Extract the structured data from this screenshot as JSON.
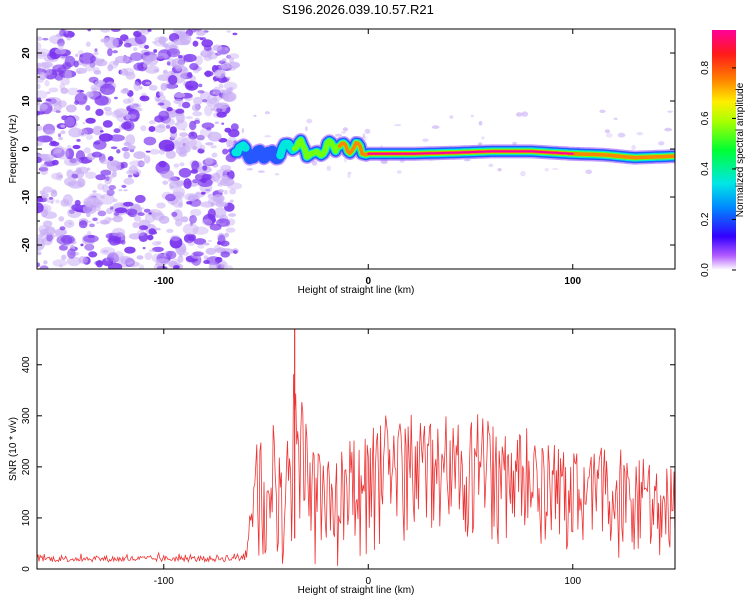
{
  "title": "S196.2026.039.10.57.R21",
  "colors": {
    "signal": "#ee3333",
    "noise": "#7a33ee",
    "noise_light": "#c9aef5"
  },
  "chart_data": [
    {
      "type": "heatmap",
      "name": "spectrogram",
      "title": "S196.2026.039.10.57.R21",
      "xlabel": "Height of straight line (km)",
      "ylabel": "Frequency (Hz)",
      "xlim": [
        -162,
        150
      ],
      "ylim": [
        -25,
        25
      ],
      "xticks": [
        -100,
        0,
        100
      ],
      "xtick_labels": [
        "-100",
        "0",
        "100"
      ],
      "yticks": [
        -20,
        -10,
        0,
        10,
        20
      ],
      "ytick_labels": [
        "-20",
        "-10",
        "0",
        "10",
        "20"
      ],
      "noise_region_x": [
        -162,
        -65
      ],
      "signal_track": {
        "x": [
          -65,
          -60,
          -55,
          -50,
          -46,
          -42,
          -38,
          -34,
          -30,
          -26,
          -22,
          -18,
          -14,
          -10,
          -6,
          0,
          20,
          40,
          60,
          80,
          100,
          115,
          130,
          150
        ],
        "freq": [
          0.5,
          -0.5,
          -1.5,
          -0.5,
          -2.0,
          0.0,
          0.5,
          1.0,
          -0.5,
          -1.5,
          0.0,
          0.5,
          1.0,
          0.0,
          0.3,
          -1.0,
          -1.0,
          -0.8,
          -0.5,
          -0.5,
          -1.0,
          -1.2,
          -1.8,
          -1.5
        ],
        "amplitude": [
          0.4,
          0.35,
          0.3,
          0.3,
          0.25,
          0.4,
          0.5,
          0.6,
          0.55,
          0.6,
          0.65,
          0.7,
          0.75,
          0.8,
          0.85,
          0.95,
          0.95,
          0.95,
          0.95,
          0.95,
          0.95,
          0.9,
          0.85,
          0.8
        ]
      },
      "colorbar": {
        "label": "Normalized spectral amplitude",
        "ticks": [
          0.0,
          0.2,
          0.4,
          0.6,
          0.8
        ],
        "tick_labels": [
          "0.0",
          "0.2",
          "0.4",
          "0.6",
          "0.8"
        ],
        "range": [
          0,
          0.95
        ]
      }
    },
    {
      "type": "line",
      "name": "snr",
      "xlabel": "Height of straight line (km)",
      "ylabel": "SNR (10 * v/v)",
      "xlim": [
        -162,
        150
      ],
      "ylim": [
        0,
        470
      ],
      "xticks": [
        -100,
        0,
        100
      ],
      "xtick_labels": [
        "-100",
        "0",
        "100"
      ],
      "yticks": [
        0,
        100,
        200,
        300,
        400
      ],
      "ytick_labels": [
        "0",
        "100",
        "200",
        "300",
        "400"
      ],
      "series": [
        {
          "name": "SNR",
          "x": [
            -162,
            -140,
            -120,
            -100,
            -80,
            -65,
            -60,
            -57,
            -55,
            -50,
            -45,
            -40,
            -36,
            -30,
            -25,
            -20,
            -10,
            0,
            10,
            20,
            25,
            30,
            40,
            50,
            60,
            70,
            80,
            90,
            100,
            110,
            120,
            130,
            140,
            150
          ],
          "envelope_max": [
            30,
            32,
            30,
            32,
            30,
            38,
            45,
            150,
            330,
            260,
            300,
            250,
            470,
            310,
            260,
            220,
            280,
            300,
            310,
            330,
            350,
            330,
            310,
            300,
            310,
            290,
            280,
            270,
            250,
            250,
            240,
            225,
            215,
            220
          ],
          "envelope_min": [
            10,
            10,
            10,
            10,
            10,
            10,
            12,
            20,
            0,
            0,
            0,
            0,
            0,
            0,
            0,
            0,
            0,
            0,
            10,
            30,
            60,
            70,
            80,
            60,
            50,
            40,
            30,
            30,
            30,
            20,
            20,
            20,
            20,
            20
          ]
        }
      ]
    }
  ]
}
